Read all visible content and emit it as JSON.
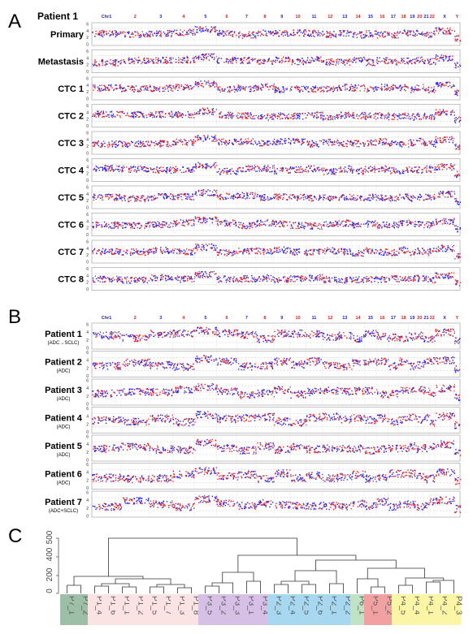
{
  "panel_a": {
    "letter": "A",
    "patient_label": "Patient 1",
    "rows": [
      "Primary",
      "Metastasis",
      "CTC 1",
      "CTC 2",
      "CTC 3",
      "CTC 4",
      "CTC 5",
      "CTC 6",
      "CTC 7",
      "CTC 8"
    ]
  },
  "panel_b": {
    "letter": "B",
    "rows": [
      {
        "name": "Patient 1",
        "sub": "(ADC→SCLC)"
      },
      {
        "name": "Patient 2",
        "sub": "(ADC)"
      },
      {
        "name": "Patient 3",
        "sub": "(ADC)"
      },
      {
        "name": "Patient 4",
        "sub": "(ADC)"
      },
      {
        "name": "Patient 5",
        "sub": "(ADC)"
      },
      {
        "name": "Patient 6",
        "sub": "(ADC)"
      },
      {
        "name": "Patient 7",
        "sub": "(ADC+SCLC)"
      }
    ]
  },
  "panel_c": {
    "letter": "C",
    "y_ticks": [
      "500",
      "400",
      "200",
      "0"
    ],
    "leaves": [
      {
        "label": "P7_1",
        "color": "#9dbfa8"
      },
      {
        "label": "P7_2",
        "color": "#9dbfa8"
      },
      {
        "label": "P1_4",
        "color": "#fbe3e3"
      },
      {
        "label": "P1_6",
        "color": "#fbe3e3"
      },
      {
        "label": "P1_1",
        "color": "#fbe3e3"
      },
      {
        "label": "P1_2",
        "color": "#fbe3e3"
      },
      {
        "label": "P1_5",
        "color": "#fbe3e3"
      },
      {
        "label": "P1_7",
        "color": "#fbe3e3"
      },
      {
        "label": "P1_3",
        "color": "#fbe3e3"
      },
      {
        "label": "P1_8",
        "color": "#fbe3e3"
      },
      {
        "label": "P3_5",
        "color": "#d7c0e6"
      },
      {
        "label": "P3_2",
        "color": "#d7c0e6"
      },
      {
        "label": "P3_3",
        "color": "#d7c0e6"
      },
      {
        "label": "P3_1",
        "color": "#d7c0e6"
      },
      {
        "label": "P3_4",
        "color": "#d7c0e6"
      },
      {
        "label": "P2_3",
        "color": "#a7d8ef"
      },
      {
        "label": "P2_4",
        "color": "#a7d8ef"
      },
      {
        "label": "P2_5",
        "color": "#a7d8ef"
      },
      {
        "label": "P2_6",
        "color": "#a7d8ef"
      },
      {
        "label": "P2_1",
        "color": "#a7d8ef"
      },
      {
        "label": "P2_2",
        "color": "#a7d8ef"
      },
      {
        "label": "P6_1",
        "color": "#bfe3c4"
      },
      {
        "label": "P5_1",
        "color": "#f2a1a1"
      },
      {
        "label": "P5_2",
        "color": "#f2a1a1"
      },
      {
        "label": "P4_5",
        "color": "#fbf6a6"
      },
      {
        "label": "P4_4",
        "color": "#fbf6a6"
      },
      {
        "label": "P4_1",
        "color": "#fbf6a6"
      },
      {
        "label": "P4_2",
        "color": "#fbf6a6"
      },
      {
        "label": "P4_3",
        "color": "#fbf6a6"
      }
    ]
  },
  "chromosomes": [
    "Chr1",
    "2",
    "3",
    "4",
    "5",
    "6",
    "7",
    "8",
    "9",
    "10",
    "11",
    "12",
    "13",
    "14",
    "15",
    "16",
    "17",
    "18",
    "19",
    "20",
    "21",
    "22",
    "X",
    "Y"
  ],
  "colors": {
    "probe_blue": "#2222ee",
    "probe_red": "#ee2222",
    "chr_blue": "#1a1acc",
    "chr_red": "#dd1a1a"
  }
}
